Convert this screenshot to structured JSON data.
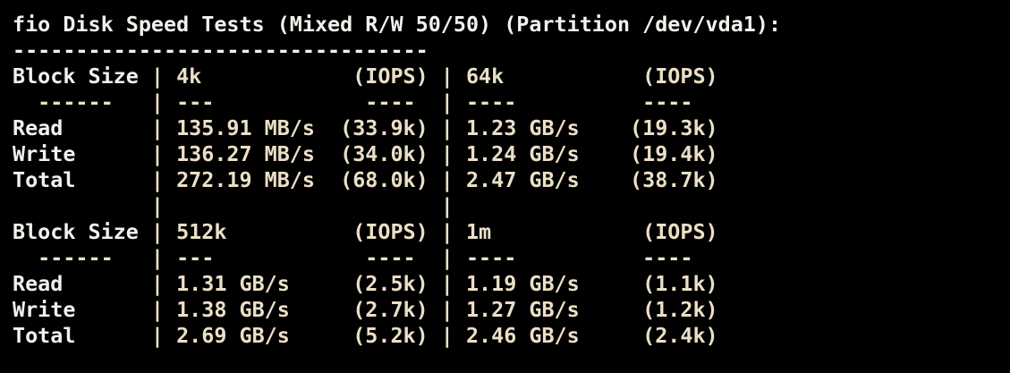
{
  "terminal": {
    "background": "#000000",
    "text_color_primary": "#f1f1ed",
    "text_color_values": "#ebdfc6",
    "title": "fio Disk Speed Tests (Mixed R/W 50/50) (Partition /dev/vda1):",
    "partition": "/dev/vda1",
    "test_type": "Mixed R/W 50/50",
    "screen_lines": [
      {
        "name": "title-line",
        "label": "fio Disk Speed Tests (Mixed R/W 50/50) (Partition /dev/vda1):",
        "rest": ""
      },
      {
        "name": "title-separator",
        "label": "---------------------------------",
        "rest": ""
      },
      {
        "name": "table-header-row",
        "label": "Block Size ",
        "rest": "| 4k            (IOPS) | 64k           (IOPS)"
      },
      {
        "name": "table-separator-row",
        "label": "",
        "rest": "  ------   | ---            ----  | ----          ---- "
      },
      {
        "name": "table-data-row",
        "label": "Read       ",
        "rest": "| 135.91 MB/s  (33.9k) | 1.23 GB/s    (19.3k)"
      },
      {
        "name": "table-data-row",
        "label": "Write      ",
        "rest": "| 136.27 MB/s  (34.0k) | 1.24 GB/s    (19.4k)"
      },
      {
        "name": "table-data-row",
        "label": "Total      ",
        "rest": "| 272.19 MB/s  (68.0k) | 2.47 GB/s    (38.7k)"
      },
      {
        "name": "table-spacer-row",
        "label": "",
        "rest": "           |                      |"
      },
      {
        "name": "table-header-row",
        "label": "Block Size ",
        "rest": "| 512k          (IOPS) | 1m            (IOPS)"
      },
      {
        "name": "table-separator-row",
        "label": "",
        "rest": "  ------   | ---            ----  | ----          ---- "
      },
      {
        "name": "table-data-row",
        "label": "Read       ",
        "rest": "| 1.31 GB/s     (2.5k) | 1.19 GB/s     (1.1k)"
      },
      {
        "name": "table-data-row",
        "label": "Write      ",
        "rest": "| 1.38 GB/s     (2.7k) | 1.27 GB/s     (1.2k)"
      },
      {
        "name": "table-data-row",
        "label": "Total      ",
        "rest": "| 2.69 GB/s     (5.2k) | 2.46 GB/s     (2.4k)"
      }
    ],
    "results": {
      "row_labels": [
        "Read",
        "Write",
        "Total"
      ],
      "blocks": [
        {
          "block_size": "4k",
          "read": {
            "speed": "135.91 MB/s",
            "iops": "33.9k"
          },
          "write": {
            "speed": "136.27 MB/s",
            "iops": "34.0k"
          },
          "total": {
            "speed": "272.19 MB/s",
            "iops": "68.0k"
          }
        },
        {
          "block_size": "64k",
          "read": {
            "speed": "1.23 GB/s",
            "iops": "19.3k"
          },
          "write": {
            "speed": "1.24 GB/s",
            "iops": "19.4k"
          },
          "total": {
            "speed": "2.47 GB/s",
            "iops": "38.7k"
          }
        },
        {
          "block_size": "512k",
          "read": {
            "speed": "1.31 GB/s",
            "iops": "2.5k"
          },
          "write": {
            "speed": "1.38 GB/s",
            "iops": "2.7k"
          },
          "total": {
            "speed": "2.69 GB/s",
            "iops": "5.2k"
          }
        },
        {
          "block_size": "1m",
          "read": {
            "speed": "1.19 GB/s",
            "iops": "1.1k"
          },
          "write": {
            "speed": "1.27 GB/s",
            "iops": "1.2k"
          },
          "total": {
            "speed": "2.46 GB/s",
            "iops": "2.4k"
          }
        }
      ]
    }
  }
}
